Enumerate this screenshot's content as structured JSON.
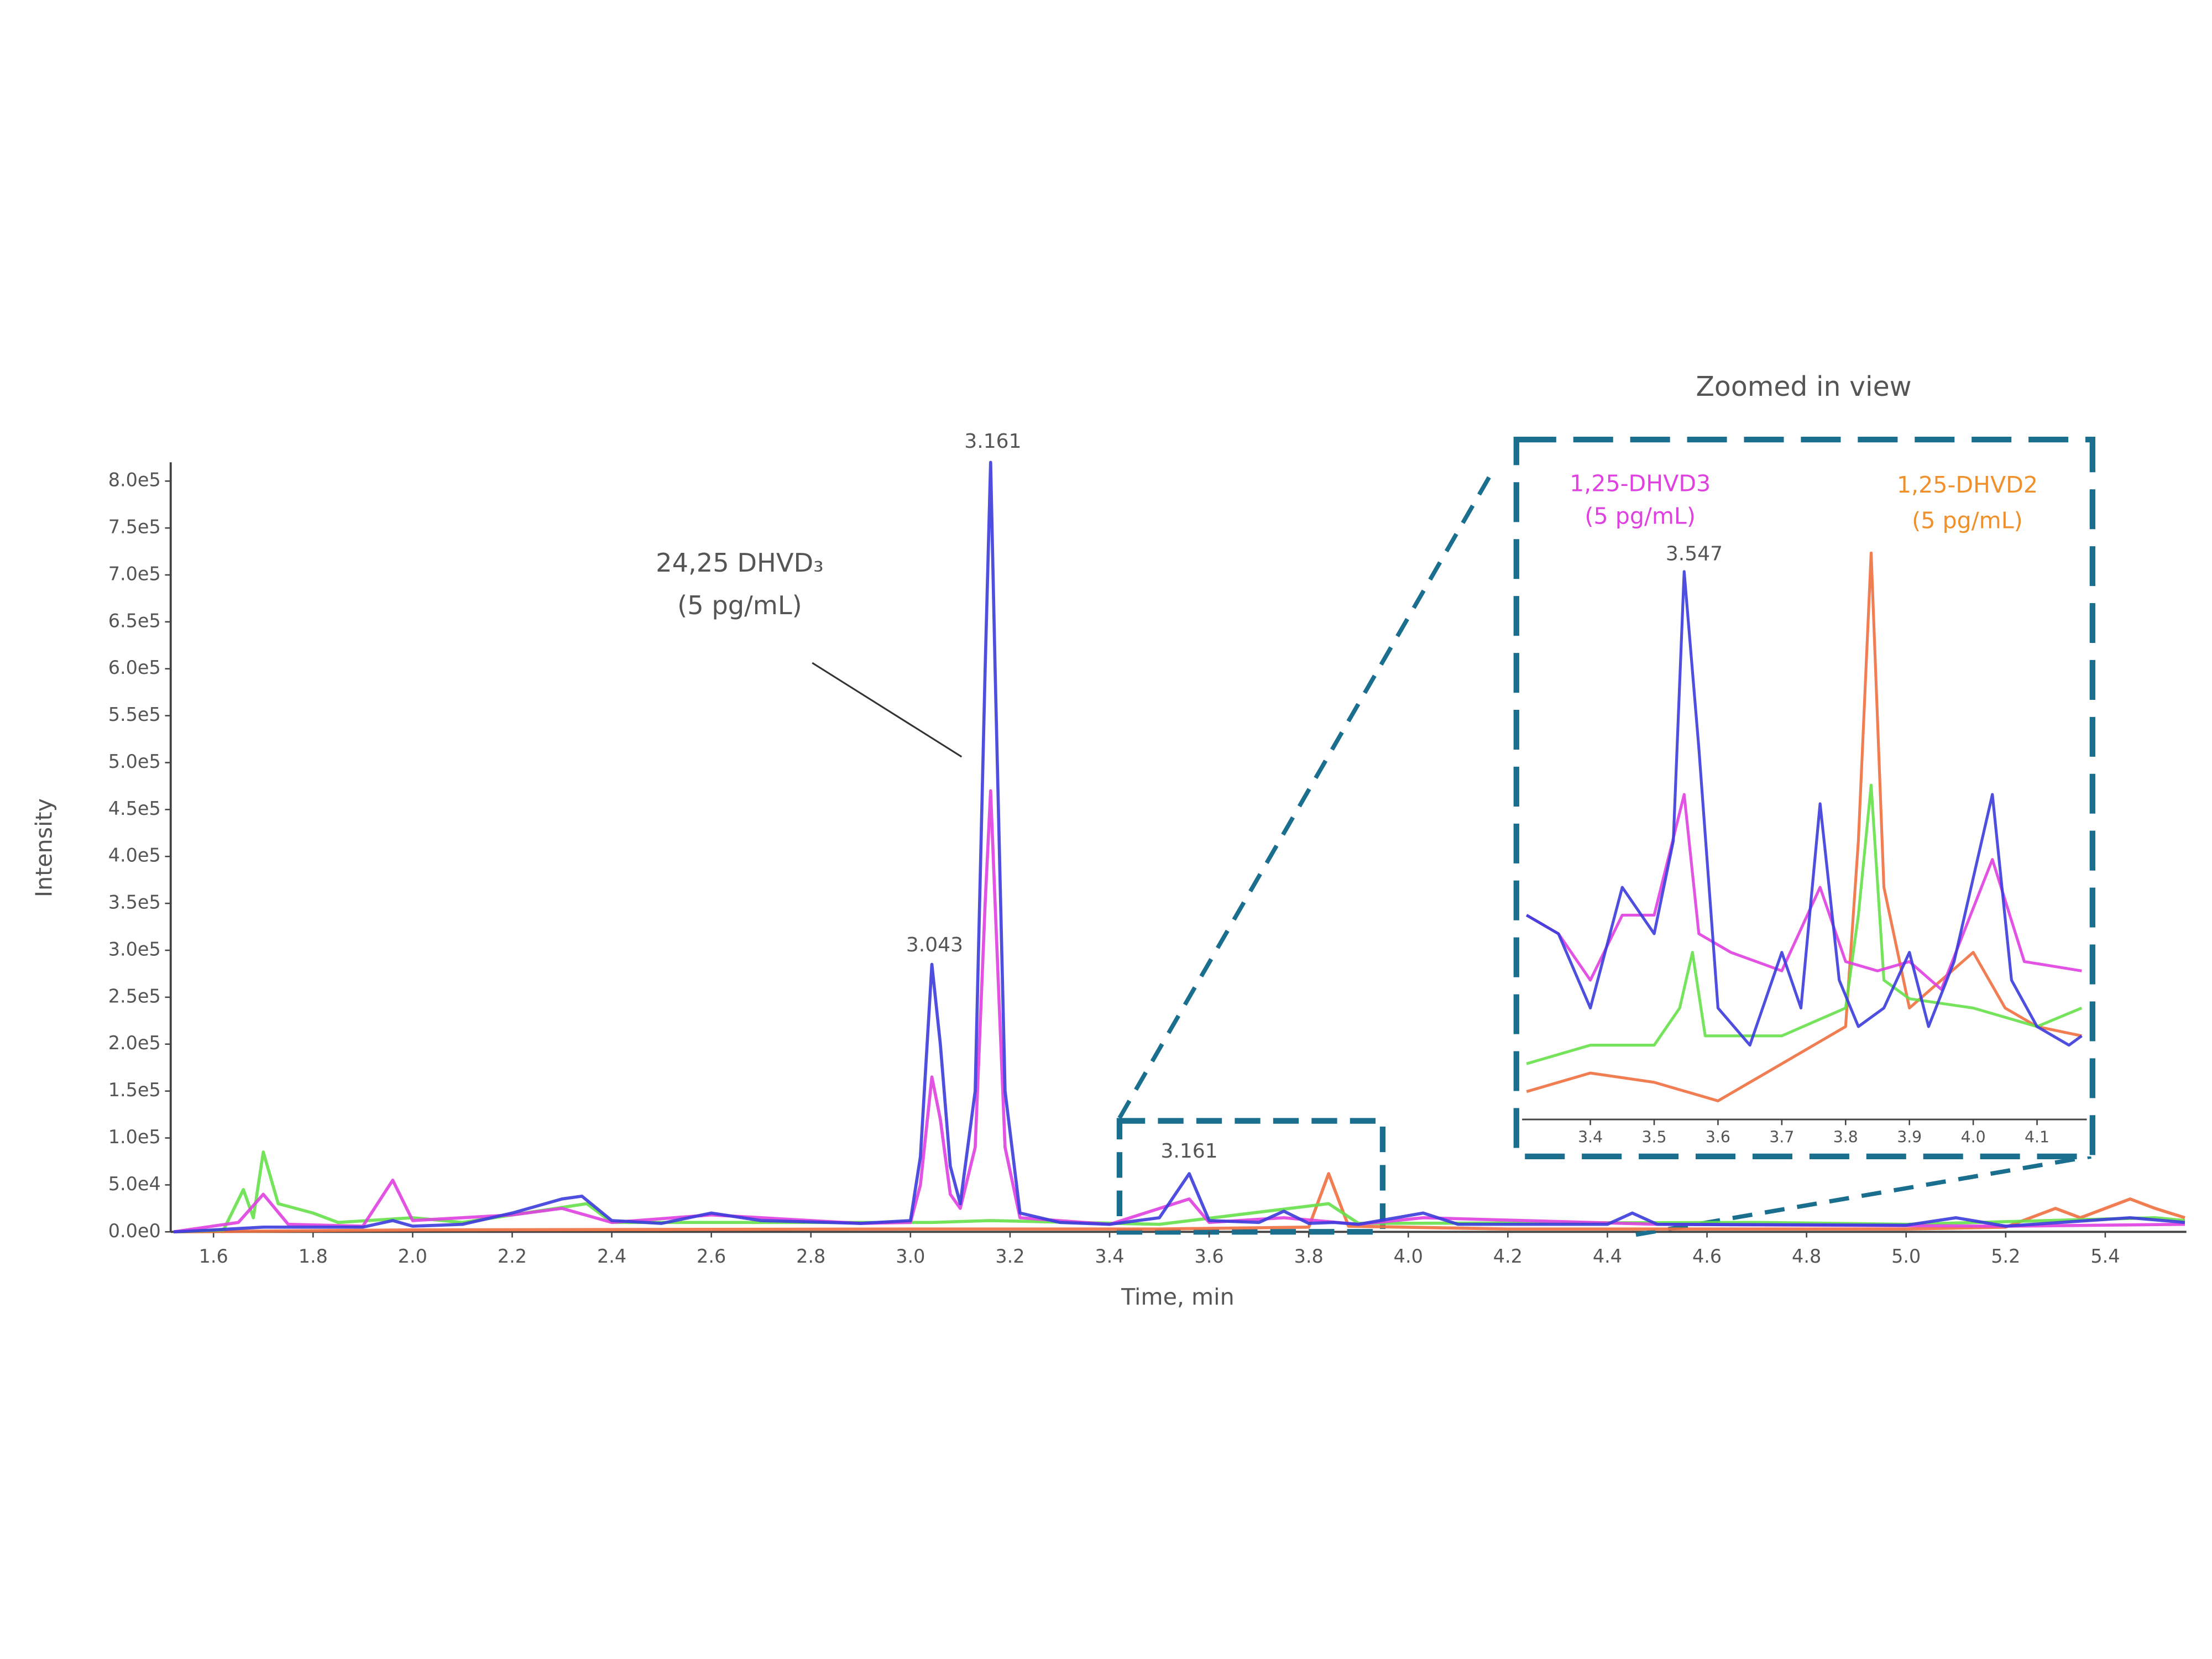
{
  "chart_data": [
    {
      "type": "line",
      "xlabel": "Time, min",
      "ylabel": "Intensity",
      "xlim": [
        1.514,
        5.563
      ],
      "ylim": [
        0,
        820000
      ],
      "xticks": [
        1.6,
        1.8,
        {
          "value": 2,
          "label": "2.0"
        },
        2.2,
        2.4,
        2.6,
        2.8,
        {
          "value": 3,
          "label": "3.0"
        },
        3.2,
        3.4,
        3.6,
        3.8,
        {
          "value": 4,
          "label": "4.0"
        },
        4.2,
        4.4,
        4.6,
        4.8,
        {
          "value": 5,
          "label": "5.0"
        },
        5.2,
        5.4
      ],
      "yticks": [
        {
          "value": 0,
          "label": "0.0e0"
        },
        {
          "value": 50000,
          "label": "5.0e4"
        },
        {
          "value": 100000,
          "label": "1.0e5"
        },
        {
          "value": 150000,
          "label": "1.5e5"
        },
        {
          "value": 200000,
          "label": "2.0e5"
        },
        {
          "value": 250000,
          "label": "2.5e5"
        },
        {
          "value": 300000,
          "label": "3.0e5"
        },
        {
          "value": 350000,
          "label": "3.5e5"
        },
        {
          "value": 400000,
          "label": "4.0e5"
        },
        {
          "value": 450000,
          "label": "4.5e5"
        },
        {
          "value": 500000,
          "label": "5.0e5"
        },
        {
          "value": 550000,
          "label": "5.5e5"
        },
        {
          "value": 600000,
          "label": "6.0e5"
        },
        {
          "value": 650000,
          "label": "6.5e5"
        },
        {
          "value": 700000,
          "label": "7.0e5"
        },
        {
          "value": 750000,
          "label": "7.5e5"
        },
        {
          "value": 800000,
          "label": "8.0e5"
        }
      ],
      "series": [
        {
          "color": "#3b3bdc",
          "x": [
            1.52,
            1.6,
            1.7,
            1.9,
            1.96,
            2.0,
            2.1,
            2.2,
            2.3,
            2.34,
            2.4,
            2.5,
            2.6,
            2.7,
            2.9,
            3.0,
            3.02,
            3.043,
            3.06,
            3.08,
            3.1,
            3.13,
            3.15,
            3.161,
            3.17,
            3.19,
            3.22,
            3.3,
            3.4,
            3.5,
            3.56,
            3.6,
            3.7,
            3.75,
            3.8,
            3.85,
            3.9,
            4.03,
            4.1,
            4.4,
            4.45,
            4.5,
            5.0,
            5.1,
            5.2,
            5.45,
            5.56
          ],
          "values": [
            0,
            2000,
            5000,
            5000,
            12000,
            6000,
            8000,
            20000,
            35000,
            38000,
            12000,
            9000,
            20000,
            12000,
            9000,
            12000,
            80000,
            285000,
            200000,
            70000,
            30000,
            150000,
            600000,
            820000,
            600000,
            150000,
            20000,
            10000,
            8000,
            15000,
            62000,
            12000,
            10000,
            22000,
            9000,
            10000,
            8000,
            20000,
            8000,
            8000,
            20000,
            8000,
            7000,
            15000,
            6000,
            15000,
            10000
          ]
        },
        {
          "color": "#e040e0",
          "x": [
            1.52,
            1.65,
            1.7,
            1.75,
            1.9,
            1.96,
            2.0,
            2.2,
            2.3,
            2.4,
            2.6,
            2.9,
            3.0,
            3.02,
            3.043,
            3.06,
            3.08,
            3.1,
            3.13,
            3.15,
            3.161,
            3.17,
            3.19,
            3.22,
            3.4,
            3.56,
            3.6,
            3.75,
            3.9,
            4.03,
            4.5,
            5.2,
            5.56
          ],
          "values": [
            0,
            10000,
            40000,
            8000,
            6000,
            55000,
            12000,
            18000,
            25000,
            10000,
            18000,
            9000,
            10000,
            50000,
            165000,
            120000,
            40000,
            25000,
            90000,
            350000,
            470000,
            350000,
            90000,
            15000,
            8000,
            35000,
            10000,
            15000,
            8000,
            15000,
            8000,
            6000,
            8000
          ]
        },
        {
          "color": "#66e04a",
          "x": [
            1.52,
            1.62,
            1.66,
            1.68,
            1.7,
            1.73,
            1.8,
            1.85,
            2.0,
            2.1,
            2.35,
            2.4,
            2.6,
            3.043,
            3.161,
            3.5,
            3.84,
            3.9,
            4.7,
            5.0,
            5.5,
            5.56
          ],
          "values": [
            0,
            2000,
            45000,
            15000,
            85000,
            30000,
            20000,
            10000,
            15000,
            10000,
            30000,
            10000,
            10000,
            10000,
            12000,
            8000,
            30000,
            9000,
            10000,
            8000,
            15000,
            12000
          ]
        },
        {
          "color": "#f07040",
          "x": [
            1.52,
            2.0,
            3.0,
            3.5,
            3.8,
            3.84,
            3.88,
            4.2,
            5.0,
            5.2,
            5.3,
            5.35,
            5.45,
            5.5,
            5.56
          ],
          "values": [
            0,
            2000,
            3000,
            3000,
            5000,
            62000,
            6000,
            3000,
            3000,
            5000,
            25000,
            15000,
            35000,
            25000,
            15000
          ]
        }
      ],
      "annotations": [
        "3.161",
        "3.043",
        "3.161",
        "24,25 DHVD₃",
        "(5 pg/mL)"
      ]
    },
    {
      "type": "line",
      "title": "Zoomed in view",
      "xlim": [
        3.293,
        4.178
      ],
      "ylim": [
        0,
        70000
      ],
      "xticks": [
        3.4,
        3.5,
        3.6,
        3.7,
        3.8,
        3.9,
        {
          "value": 4,
          "label": "4.0"
        },
        4.1
      ],
      "series": [
        {
          "color": "#3b3bdc",
          "x": [
            3.3,
            3.35,
            3.4,
            3.45,
            3.5,
            3.53,
            3.547,
            3.57,
            3.6,
            3.65,
            3.7,
            3.73,
            3.76,
            3.79,
            3.82,
            3.86,
            3.9,
            3.93,
            3.97,
            4.03,
            4.06,
            4.1,
            4.15,
            4.17
          ],
          "values": [
            22000,
            20000,
            12000,
            25000,
            20000,
            30000,
            59000,
            40000,
            12000,
            8000,
            18000,
            12000,
            34000,
            15000,
            10000,
            12000,
            18000,
            10000,
            17000,
            35000,
            15000,
            10000,
            8000,
            9000
          ]
        },
        {
          "color": "#e040e0",
          "x": [
            3.3,
            3.35,
            3.4,
            3.45,
            3.5,
            3.547,
            3.57,
            3.62,
            3.7,
            3.76,
            3.8,
            3.85,
            3.9,
            3.95,
            4.03,
            4.08,
            4.17
          ],
          "values": [
            22000,
            20000,
            15000,
            22000,
            22000,
            35000,
            20000,
            18000,
            16000,
            25000,
            17000,
            16000,
            17000,
            14000,
            28000,
            17000,
            16000
          ]
        },
        {
          "color": "#66e04a",
          "x": [
            3.3,
            3.4,
            3.5,
            3.54,
            3.56,
            3.58,
            3.7,
            3.8,
            3.82,
            3.84,
            3.86,
            3.9,
            4.0,
            4.1,
            4.17
          ],
          "values": [
            6000,
            8000,
            8000,
            12000,
            18000,
            9000,
            9000,
            12000,
            22000,
            36000,
            15000,
            13000,
            12000,
            10000,
            12000
          ]
        },
        {
          "color": "#f07040",
          "x": [
            3.3,
            3.4,
            3.5,
            3.6,
            3.7,
            3.8,
            3.82,
            3.84,
            3.86,
            3.9,
            3.95,
            4.0,
            4.05,
            4.1,
            4.17
          ],
          "values": [
            3000,
            5000,
            4000,
            2000,
            6000,
            10000,
            30000,
            61000,
            25000,
            12000,
            15000,
            18000,
            12000,
            10000,
            9000
          ]
        }
      ],
      "annotations": [
        "1,25-DHVD3",
        "(5 pg/mL)",
        "3.547",
        "1,25-DHVD2",
        "(5 pg/mL)"
      ]
    }
  ]
}
